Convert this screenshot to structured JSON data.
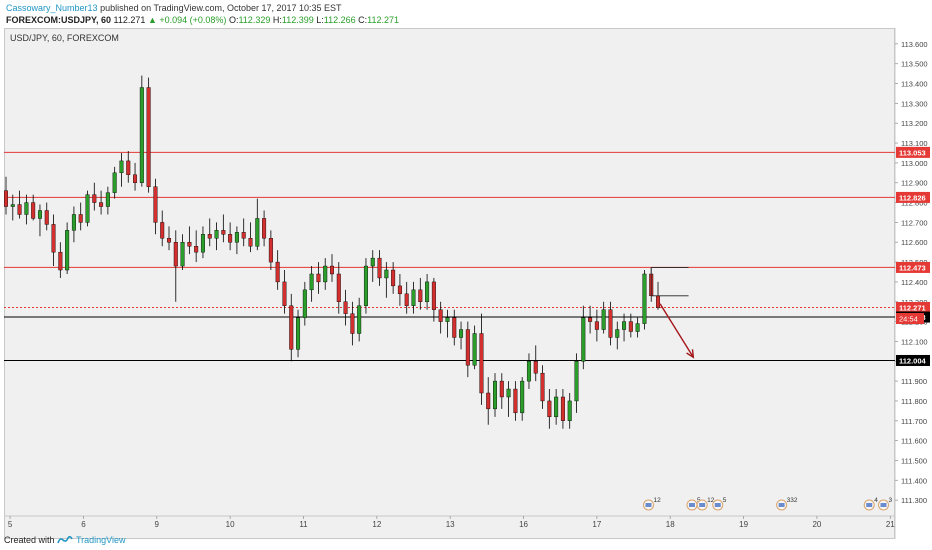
{
  "header": {
    "author": "Cassowary_Number13",
    "published_text": "published on TradingView.com, October 17, 2017 10:35 EST",
    "symbol": "FOREXCOM:USDJPY, 60",
    "last": "112.271",
    "change_arrow": "▲",
    "change": "+0.094 (+0.08%)",
    "open_label": "O:",
    "open": "112.329",
    "high_label": "H:",
    "high": "112.399",
    "low_label": "L:",
    "low": "112.266",
    "close_label": "C:",
    "close": "112.271"
  },
  "footer": {
    "created_with": "Created with",
    "brand": "TradingView"
  },
  "colors": {
    "up": "#2a9d2a",
    "down": "#d32f2f",
    "level_line": "#e53935",
    "black_line": "#000000",
    "background": "#f0f0f0",
    "accent": "#2196c4"
  },
  "chart_data": {
    "type": "candlestick",
    "title": "USD/JPY, 60, FOREXCOM",
    "ylim": [
      111.22,
      113.68
    ],
    "y_ticks": [
      "113.600",
      "113.500",
      "113.400",
      "113.300",
      "113.200",
      "113.100",
      "113.000",
      "112.900",
      "112.800",
      "112.700",
      "112.600",
      "112.500",
      "112.400",
      "112.300",
      "112.200",
      "112.100",
      "112.000",
      "111.900",
      "111.800",
      "111.700",
      "111.600",
      "111.500",
      "111.400",
      "111.300"
    ],
    "x_ticks": [
      {
        "label": "5",
        "t": 0.6
      },
      {
        "label": "6",
        "t": 11.4
      },
      {
        "label": "9",
        "t": 22.2
      },
      {
        "label": "10",
        "t": 33.0
      },
      {
        "label": "11",
        "t": 43.8
      },
      {
        "label": "12",
        "t": 54.6
      },
      {
        "label": "13",
        "t": 65.4
      },
      {
        "label": "16",
        "t": 76.2
      },
      {
        "label": "17",
        "t": 87.0
      },
      {
        "label": "18",
        "t": 97.8
      },
      {
        "label": "19",
        "t": 108.6
      },
      {
        "label": "20",
        "t": 119.4
      },
      {
        "label": "21",
        "t": 130.2
      }
    ],
    "t_range": [
      0,
      130.6
    ],
    "horizontal_levels": [
      {
        "price": 113.053,
        "label": "113.053",
        "color": "#e53935"
      },
      {
        "price": 112.826,
        "label": "112.826",
        "color": "#e53935"
      },
      {
        "price": 112.473,
        "label": "112.473",
        "color": "#e53935"
      },
      {
        "price": 112.271,
        "label": "112.271",
        "color": "#e53935",
        "dashed": true
      },
      {
        "price": 112.223,
        "label": "112.223",
        "color": "#000000"
      },
      {
        "price": 112.004,
        "label": "112.004",
        "color": "#000000"
      }
    ],
    "countdown": "24:54",
    "candles": [
      {
        "t": 0,
        "o": 112.86,
        "h": 112.93,
        "l": 112.74,
        "c": 112.78
      },
      {
        "t": 1,
        "o": 112.78,
        "h": 112.84,
        "l": 112.71,
        "c": 112.79
      },
      {
        "t": 2,
        "o": 112.79,
        "h": 112.86,
        "l": 112.72,
        "c": 112.74
      },
      {
        "t": 3,
        "o": 112.74,
        "h": 112.84,
        "l": 112.69,
        "c": 112.8
      },
      {
        "t": 4,
        "o": 112.8,
        "h": 112.84,
        "l": 112.71,
        "c": 112.72
      },
      {
        "t": 5,
        "o": 112.72,
        "h": 112.79,
        "l": 112.63,
        "c": 112.76
      },
      {
        "t": 6,
        "o": 112.76,
        "h": 112.8,
        "l": 112.66,
        "c": 112.69
      },
      {
        "t": 7,
        "o": 112.69,
        "h": 112.74,
        "l": 112.48,
        "c": 112.55
      },
      {
        "t": 8,
        "o": 112.55,
        "h": 112.6,
        "l": 112.42,
        "c": 112.46
      },
      {
        "t": 9,
        "o": 112.46,
        "h": 112.7,
        "l": 112.44,
        "c": 112.66
      },
      {
        "t": 10,
        "o": 112.66,
        "h": 112.78,
        "l": 112.6,
        "c": 112.74
      },
      {
        "t": 11,
        "o": 112.74,
        "h": 112.8,
        "l": 112.66,
        "c": 112.7
      },
      {
        "t": 12,
        "o": 112.7,
        "h": 112.86,
        "l": 112.68,
        "c": 112.84
      },
      {
        "t": 13,
        "o": 112.84,
        "h": 112.9,
        "l": 112.76,
        "c": 112.8
      },
      {
        "t": 14,
        "o": 112.8,
        "h": 112.86,
        "l": 112.74,
        "c": 112.78
      },
      {
        "t": 15,
        "o": 112.78,
        "h": 112.88,
        "l": 112.74,
        "c": 112.85
      },
      {
        "t": 16,
        "o": 112.85,
        "h": 112.98,
        "l": 112.82,
        "c": 112.95
      },
      {
        "t": 17,
        "o": 112.95,
        "h": 113.05,
        "l": 112.88,
        "c": 113.01
      },
      {
        "t": 18,
        "o": 113.01,
        "h": 113.06,
        "l": 112.9,
        "c": 112.94
      },
      {
        "t": 19,
        "o": 112.94,
        "h": 113.0,
        "l": 112.86,
        "c": 112.9
      },
      {
        "t": 20,
        "o": 112.9,
        "h": 113.44,
        "l": 112.88,
        "c": 113.38
      },
      {
        "t": 21,
        "o": 113.38,
        "h": 113.43,
        "l": 112.85,
        "c": 112.88
      },
      {
        "t": 22,
        "o": 112.88,
        "h": 112.92,
        "l": 112.64,
        "c": 112.7
      },
      {
        "t": 23,
        "o": 112.7,
        "h": 112.76,
        "l": 112.58,
        "c": 112.62
      },
      {
        "t": 24,
        "o": 112.62,
        "h": 112.68,
        "l": 112.56,
        "c": 112.6
      },
      {
        "t": 25,
        "o": 112.6,
        "h": 112.66,
        "l": 112.3,
        "c": 112.48
      },
      {
        "t": 26,
        "o": 112.48,
        "h": 112.64,
        "l": 112.46,
        "c": 112.6
      },
      {
        "t": 27,
        "o": 112.6,
        "h": 112.68,
        "l": 112.54,
        "c": 112.58
      },
      {
        "t": 28,
        "o": 112.58,
        "h": 112.66,
        "l": 112.5,
        "c": 112.55
      },
      {
        "t": 29,
        "o": 112.55,
        "h": 112.68,
        "l": 112.52,
        "c": 112.64
      },
      {
        "t": 30,
        "o": 112.64,
        "h": 112.72,
        "l": 112.58,
        "c": 112.62
      },
      {
        "t": 31,
        "o": 112.62,
        "h": 112.7,
        "l": 112.56,
        "c": 112.66
      },
      {
        "t": 32,
        "o": 112.66,
        "h": 112.74,
        "l": 112.6,
        "c": 112.64
      },
      {
        "t": 33,
        "o": 112.64,
        "h": 112.7,
        "l": 112.56,
        "c": 112.6
      },
      {
        "t": 34,
        "o": 112.6,
        "h": 112.68,
        "l": 112.54,
        "c": 112.65
      },
      {
        "t": 35,
        "o": 112.65,
        "h": 112.72,
        "l": 112.58,
        "c": 112.62
      },
      {
        "t": 36,
        "o": 112.62,
        "h": 112.7,
        "l": 112.55,
        "c": 112.58
      },
      {
        "t": 37,
        "o": 112.58,
        "h": 112.82,
        "l": 112.56,
        "c": 112.72
      },
      {
        "t": 38,
        "o": 112.72,
        "h": 112.76,
        "l": 112.58,
        "c": 112.62
      },
      {
        "t": 39,
        "o": 112.62,
        "h": 112.66,
        "l": 112.46,
        "c": 112.5
      },
      {
        "t": 40,
        "o": 112.5,
        "h": 112.56,
        "l": 112.36,
        "c": 112.4
      },
      {
        "t": 41,
        "o": 112.4,
        "h": 112.46,
        "l": 112.24,
        "c": 112.28
      },
      {
        "t": 42,
        "o": 112.28,
        "h": 112.34,
        "l": 112.0,
        "c": 112.06
      },
      {
        "t": 43,
        "o": 112.06,
        "h": 112.26,
        "l": 112.02,
        "c": 112.22
      },
      {
        "t": 44,
        "o": 112.22,
        "h": 112.4,
        "l": 112.18,
        "c": 112.36
      },
      {
        "t": 45,
        "o": 112.36,
        "h": 112.48,
        "l": 112.3,
        "c": 112.44
      },
      {
        "t": 46,
        "o": 112.44,
        "h": 112.5,
        "l": 112.34,
        "c": 112.4
      },
      {
        "t": 47,
        "o": 112.4,
        "h": 112.52,
        "l": 112.36,
        "c": 112.48
      },
      {
        "t": 48,
        "o": 112.48,
        "h": 112.54,
        "l": 112.4,
        "c": 112.44
      },
      {
        "t": 49,
        "o": 112.44,
        "h": 112.5,
        "l": 112.24,
        "c": 112.3
      },
      {
        "t": 50,
        "o": 112.3,
        "h": 112.36,
        "l": 112.18,
        "c": 112.24
      },
      {
        "t": 51,
        "o": 112.24,
        "h": 112.3,
        "l": 112.08,
        "c": 112.14
      },
      {
        "t": 52,
        "o": 112.14,
        "h": 112.32,
        "l": 112.1,
        "c": 112.28
      },
      {
        "t": 53,
        "o": 112.28,
        "h": 112.52,
        "l": 112.24,
        "c": 112.48
      },
      {
        "t": 54,
        "o": 112.48,
        "h": 112.56,
        "l": 112.4,
        "c": 112.52
      },
      {
        "t": 55,
        "o": 112.52,
        "h": 112.56,
        "l": 112.38,
        "c": 112.42
      },
      {
        "t": 56,
        "o": 112.42,
        "h": 112.5,
        "l": 112.32,
        "c": 112.46
      },
      {
        "t": 57,
        "o": 112.46,
        "h": 112.5,
        "l": 112.34,
        "c": 112.38
      },
      {
        "t": 58,
        "o": 112.38,
        "h": 112.44,
        "l": 112.28,
        "c": 112.34
      },
      {
        "t": 59,
        "o": 112.34,
        "h": 112.4,
        "l": 112.24,
        "c": 112.28
      },
      {
        "t": 60,
        "o": 112.28,
        "h": 112.4,
        "l": 112.24,
        "c": 112.36
      },
      {
        "t": 61,
        "o": 112.36,
        "h": 112.42,
        "l": 112.26,
        "c": 112.3
      },
      {
        "t": 62,
        "o": 112.3,
        "h": 112.44,
        "l": 112.26,
        "c": 112.4
      },
      {
        "t": 63,
        "o": 112.4,
        "h": 112.42,
        "l": 112.2,
        "c": 112.26
      },
      {
        "t": 64,
        "o": 112.26,
        "h": 112.3,
        "l": 112.14,
        "c": 112.2
      },
      {
        "t": 65,
        "o": 112.2,
        "h": 112.26,
        "l": 112.12,
        "c": 112.22
      },
      {
        "t": 66,
        "o": 112.22,
        "h": 112.26,
        "l": 112.08,
        "c": 112.12
      },
      {
        "t": 67,
        "o": 112.12,
        "h": 112.2,
        "l": 112.06,
        "c": 112.16
      },
      {
        "t": 68,
        "o": 112.16,
        "h": 112.2,
        "l": 111.92,
        "c": 111.98
      },
      {
        "t": 69,
        "o": 111.98,
        "h": 112.18,
        "l": 111.96,
        "c": 112.14
      },
      {
        "t": 70,
        "o": 112.14,
        "h": 112.24,
        "l": 111.78,
        "c": 111.84
      },
      {
        "t": 71,
        "o": 111.84,
        "h": 111.92,
        "l": 111.68,
        "c": 111.76
      },
      {
        "t": 72,
        "o": 111.76,
        "h": 111.94,
        "l": 111.72,
        "c": 111.9
      },
      {
        "t": 73,
        "o": 111.9,
        "h": 111.94,
        "l": 111.76,
        "c": 111.82
      },
      {
        "t": 74,
        "o": 111.82,
        "h": 111.9,
        "l": 111.72,
        "c": 111.86
      },
      {
        "t": 75,
        "o": 111.86,
        "h": 111.9,
        "l": 111.7,
        "c": 111.74
      },
      {
        "t": 76,
        "o": 111.74,
        "h": 111.92,
        "l": 111.7,
        "c": 111.9
      },
      {
        "t": 77,
        "o": 111.9,
        "h": 112.04,
        "l": 111.86,
        "c": 112.0
      },
      {
        "t": 78,
        "o": 112.0,
        "h": 112.08,
        "l": 111.9,
        "c": 111.94
      },
      {
        "t": 79,
        "o": 111.94,
        "h": 111.98,
        "l": 111.76,
        "c": 111.8
      },
      {
        "t": 80,
        "o": 111.8,
        "h": 111.86,
        "l": 111.66,
        "c": 111.72
      },
      {
        "t": 81,
        "o": 111.72,
        "h": 111.86,
        "l": 111.68,
        "c": 111.82
      },
      {
        "t": 82,
        "o": 111.82,
        "h": 111.86,
        "l": 111.66,
        "c": 111.7
      },
      {
        "t": 83,
        "o": 111.7,
        "h": 111.84,
        "l": 111.66,
        "c": 111.8
      },
      {
        "t": 84,
        "o": 111.8,
        "h": 112.04,
        "l": 111.74,
        "c": 112.0
      },
      {
        "t": 85,
        "o": 112.0,
        "h": 112.28,
        "l": 111.96,
        "c": 112.22
      },
      {
        "t": 86,
        "o": 112.22,
        "h": 112.28,
        "l": 112.14,
        "c": 112.2
      },
      {
        "t": 87,
        "o": 112.2,
        "h": 112.26,
        "l": 112.1,
        "c": 112.16
      },
      {
        "t": 88,
        "o": 112.16,
        "h": 112.3,
        "l": 112.14,
        "c": 112.26
      },
      {
        "t": 89,
        "o": 112.26,
        "h": 112.3,
        "l": 112.08,
        "c": 112.12
      },
      {
        "t": 90,
        "o": 112.12,
        "h": 112.2,
        "l": 112.06,
        "c": 112.16
      },
      {
        "t": 91,
        "o": 112.16,
        "h": 112.24,
        "l": 112.1,
        "c": 112.2
      },
      {
        "t": 92,
        "o": 112.2,
        "h": 112.24,
        "l": 112.12,
        "c": 112.15
      },
      {
        "t": 93,
        "o": 112.15,
        "h": 112.22,
        "l": 112.12,
        "c": 112.19
      },
      {
        "t": 94,
        "o": 112.19,
        "h": 112.46,
        "l": 112.16,
        "c": 112.44
      },
      {
        "t": 95,
        "o": 112.44,
        "h": 112.47,
        "l": 112.3,
        "c": 112.33
      },
      {
        "t": 96,
        "o": 112.33,
        "h": 112.4,
        "l": 112.26,
        "c": 112.27
      }
    ],
    "rectangle": {
      "t1": 95,
      "t2": 100.5,
      "p1": 112.473,
      "p2": 112.33
    },
    "arrow": {
      "t1": 96.3,
      "p1": 112.29,
      "t2": 101.2,
      "p2": 112.02
    },
    "event_markers": [
      {
        "t": 94.6,
        "label": "12"
      },
      {
        "t": 101.0,
        "label": "5"
      },
      {
        "t": 102.5,
        "label": "12"
      },
      {
        "t": 104.8,
        "label": "5"
      },
      {
        "t": 114.2,
        "label": "332"
      },
      {
        "t": 127.1,
        "label": "4"
      },
      {
        "t": 129.2,
        "label": "3"
      }
    ]
  }
}
